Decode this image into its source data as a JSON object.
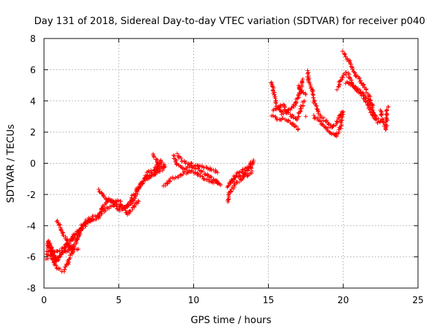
{
  "chart_data": {
    "type": "scatter",
    "title": "Day 131 of 2018, Sidereal Day-to-day VTEC variation (SDTVAR) for receiver p040",
    "xlabel": "GPS time / hours",
    "ylabel": "SDTVAR / TECUs",
    "xlim": [
      0,
      25
    ],
    "ylim": [
      -8,
      8
    ],
    "xticks": [
      0,
      5,
      10,
      15,
      20,
      25
    ],
    "yticks": [
      -8,
      -6,
      -4,
      -2,
      0,
      2,
      4,
      6,
      8
    ],
    "grid": true,
    "marker": "+",
    "color": "#ff0000",
    "series": [
      {
        "name": "SDTVAR",
        "tracks": [
          [
            [
              0.2,
              -6.1
            ],
            [
              0.3,
              -5.0
            ],
            [
              0.5,
              -5.5
            ],
            [
              0.8,
              -6.2
            ],
            [
              1.1,
              -5.9
            ],
            [
              1.5,
              -5.3
            ],
            [
              1.9,
              -4.7
            ],
            [
              2.4,
              -4.2
            ],
            [
              2.9,
              -3.6
            ],
            [
              3.4,
              -3.4
            ],
            [
              3.8,
              -3.2
            ],
            [
              4.2,
              -2.9
            ],
            [
              4.7,
              -2.7
            ],
            [
              5.1,
              -3.0
            ],
            [
              5.5,
              -2.8
            ],
            [
              5.9,
              -2.2
            ],
            [
              6.4,
              -1.4
            ],
            [
              7.0,
              -0.9
            ],
            [
              7.5,
              -0.6
            ],
            [
              7.8,
              0.2
            ]
          ],
          [
            [
              0.3,
              -5.3
            ],
            [
              0.6,
              -5.6
            ],
            [
              0.9,
              -5.7
            ],
            [
              1.3,
              -5.4
            ],
            [
              1.8,
              -5.0
            ],
            [
              2.2,
              -4.6
            ],
            [
              2.7,
              -4.0
            ],
            [
              3.1,
              -3.7
            ],
            [
              3.6,
              -3.5
            ],
            [
              4.0,
              -2.7
            ],
            [
              4.4,
              -2.3
            ],
            [
              4.9,
              -2.6
            ],
            [
              5.3,
              -2.9
            ],
            [
              5.8,
              -2.6
            ],
            [
              6.3,
              -1.7
            ],
            [
              6.8,
              -0.8
            ],
            [
              7.3,
              -0.7
            ],
            [
              7.7,
              -0.5
            ],
            [
              8.0,
              -0.3
            ]
          ],
          [
            [
              0.4,
              -5.8
            ],
            [
              0.7,
              -6.5
            ],
            [
              1.0,
              -6.8
            ],
            [
              1.3,
              -6.9
            ],
            [
              1.6,
              -6.4
            ],
            [
              1.9,
              -5.6
            ],
            [
              2.2,
              -4.9
            ],
            [
              2.5,
              -4.2
            ],
            [
              2.8,
              -3.8
            ],
            [
              3.2,
              -3.6
            ]
          ],
          [
            [
              0.8,
              -3.7
            ],
            [
              1.1,
              -4.0
            ],
            [
              1.3,
              -4.6
            ],
            [
              1.5,
              -4.8
            ],
            [
              1.6,
              -5.2
            ],
            [
              1.8,
              -5.4
            ],
            [
              2.0,
              -5.6
            ],
            [
              2.3,
              -5.5
            ]
          ],
          [
            [
              0.2,
              -5.2
            ],
            [
              0.4,
              -5.4
            ],
            [
              0.6,
              -6.0
            ],
            [
              0.8,
              -6.3
            ],
            [
              1.0,
              -6.1
            ],
            [
              1.2,
              -5.7
            ],
            [
              1.6,
              -5.6
            ],
            [
              2.0,
              -5.2
            ]
          ],
          [
            [
              3.7,
              -1.7
            ],
            [
              3.9,
              -2.0
            ],
            [
              4.2,
              -2.3
            ],
            [
              4.6,
              -2.5
            ],
            [
              5.0,
              -2.4
            ],
            [
              5.3,
              -2.8
            ],
            [
              5.6,
              -3.3
            ],
            [
              6.0,
              -2.8
            ],
            [
              6.3,
              -2.4
            ]
          ],
          [
            [
              6.9,
              -0.6
            ],
            [
              7.3,
              -0.5
            ],
            [
              7.6,
              -0.1
            ],
            [
              7.9,
              0.0
            ],
            [
              8.1,
              -0.2
            ],
            [
              7.8,
              -0.3
            ],
            [
              7.5,
              0.2
            ],
            [
              7.3,
              0.6
            ]
          ],
          [
            [
              8.0,
              -1.5
            ],
            [
              8.6,
              -0.9
            ]
          ],
          [
            [
              8.7,
              0.5
            ],
            [
              8.8,
              0.1
            ],
            [
              9.0,
              -0.2
            ],
            [
              9.3,
              -0.4
            ],
            [
              9.7,
              -0.2
            ],
            [
              10.1,
              -0.3
            ],
            [
              10.5,
              -0.5
            ],
            [
              10.9,
              -0.7
            ],
            [
              11.3,
              -1.0
            ],
            [
              11.7,
              -1.3
            ]
          ],
          [
            [
              8.9,
              0.6
            ],
            [
              9.2,
              0.2
            ],
            [
              9.6,
              0.0
            ],
            [
              10.0,
              -0.1
            ],
            [
              10.4,
              -0.2
            ],
            [
              10.8,
              -0.3
            ],
            [
              11.2,
              -0.4
            ],
            [
              11.6,
              -0.6
            ]
          ],
          [
            [
              8.7,
              -1.0
            ],
            [
              9.0,
              -0.9
            ],
            [
              9.4,
              -0.6
            ],
            [
              9.8,
              -0.5
            ],
            [
              10.2,
              -0.6
            ],
            [
              10.6,
              -0.9
            ],
            [
              11.0,
              -1.1
            ],
            [
              11.4,
              -1.2
            ],
            [
              11.8,
              -1.4
            ]
          ],
          [
            [
              12.3,
              -2.5
            ],
            [
              12.4,
              -1.9
            ],
            [
              12.6,
              -1.6
            ],
            [
              12.9,
              -1.2
            ],
            [
              13.2,
              -1.0
            ],
            [
              13.5,
              -0.6
            ],
            [
              13.8,
              -0.3
            ],
            [
              14.0,
              0.1
            ]
          ],
          [
            [
              12.4,
              -1.3
            ],
            [
              12.7,
              -1.0
            ],
            [
              13.0,
              -0.8
            ],
            [
              13.3,
              -0.7
            ],
            [
              13.6,
              -0.8
            ],
            [
              13.9,
              -0.5
            ]
          ],
          [
            [
              12.3,
              -1.5
            ],
            [
              12.5,
              -1.2
            ],
            [
              12.8,
              -0.8
            ],
            [
              13.1,
              -0.5
            ],
            [
              13.4,
              -0.4
            ],
            [
              13.7,
              -0.2
            ],
            [
              14.0,
              0.2
            ]
          ],
          [
            [
              15.2,
              5.2
            ],
            [
              15.4,
              4.4
            ],
            [
              15.6,
              3.6
            ],
            [
              15.9,
              3.2
            ],
            [
              16.2,
              3.3
            ],
            [
              16.5,
              3.5
            ],
            [
              16.8,
              3.8
            ],
            [
              17.1,
              4.5
            ],
            [
              17.3,
              5.4
            ]
          ],
          [
            [
              15.2,
              3.0
            ],
            [
              15.5,
              2.9
            ],
            [
              15.8,
              2.8
            ],
            [
              16.1,
              2.8
            ],
            [
              16.4,
              2.7
            ],
            [
              16.7,
              2.4
            ],
            [
              17.0,
              2.2
            ]
          ],
          [
            [
              15.3,
              3.4
            ],
            [
              15.7,
              3.5
            ],
            [
              16.0,
              3.8
            ],
            [
              16.3,
              3.2
            ],
            [
              16.6,
              3.0
            ],
            [
              16.9,
              2.8
            ],
            [
              17.2,
              3.6
            ],
            [
              17.4,
              4.0
            ]
          ],
          [
            [
              17.0,
              5.0
            ],
            [
              17.2,
              4.6
            ],
            [
              17.5,
              4.4
            ]
          ],
          [
            [
              17.6,
              5.9
            ],
            [
              17.7,
              5.3
            ],
            [
              17.9,
              4.8
            ],
            [
              18.1,
              3.9
            ],
            [
              18.3,
              3.3
            ],
            [
              18.6,
              2.9
            ],
            [
              18.9,
              2.7
            ],
            [
              19.2,
              2.3
            ],
            [
              19.5,
              2.5
            ],
            [
              19.7,
              2.9
            ],
            [
              19.9,
              3.3
            ]
          ],
          [
            [
              18.0,
              3.0
            ],
            [
              18.4,
              2.7
            ],
            [
              18.7,
              2.4
            ],
            [
              19.0,
              2.1
            ],
            [
              19.3,
              1.9
            ],
            [
              19.5,
              1.7
            ],
            [
              19.8,
              2.3
            ],
            [
              20.0,
              3.3
            ]
          ],
          [
            [
              17.5,
              3.0
            ]
          ],
          [
            [
              19.6,
              4.8
            ],
            [
              19.8,
              5.3
            ],
            [
              20.0,
              5.6
            ],
            [
              20.2,
              5.8
            ],
            [
              20.4,
              5.6
            ],
            [
              20.6,
              5.1
            ],
            [
              20.8,
              4.8
            ],
            [
              21.0,
              4.6
            ],
            [
              21.3,
              4.3
            ],
            [
              21.6,
              3.8
            ],
            [
              21.9,
              3.2
            ],
            [
              22.1,
              2.9
            ],
            [
              22.3,
              2.6
            ]
          ],
          [
            [
              20.0,
              7.1
            ],
            [
              20.2,
              6.8
            ],
            [
              20.4,
              6.5
            ],
            [
              20.6,
              6.2
            ],
            [
              20.8,
              5.7
            ],
            [
              21.0,
              5.5
            ],
            [
              21.2,
              5.2
            ],
            [
              21.4,
              4.9
            ],
            [
              21.6,
              4.6
            ],
            [
              21.8,
              4.2
            ],
            [
              22.0,
              3.7
            ]
          ],
          [
            [
              20.2,
              5.2
            ],
            [
              20.5,
              5.0
            ],
            [
              20.8,
              4.9
            ],
            [
              21.1,
              4.7
            ],
            [
              21.4,
              4.4
            ],
            [
              21.7,
              4.0
            ],
            [
              22.0,
              3.4
            ],
            [
              22.3,
              2.8
            ],
            [
              22.5,
              2.7
            ]
          ],
          [
            [
              22.5,
              3.4
            ],
            [
              22.6,
              3.0
            ],
            [
              22.7,
              2.5
            ],
            [
              22.8,
              2.2
            ],
            [
              22.9,
              2.6
            ],
            [
              22.9,
              3.2
            ],
            [
              23.0,
              3.6
            ]
          ]
        ]
      }
    ]
  }
}
